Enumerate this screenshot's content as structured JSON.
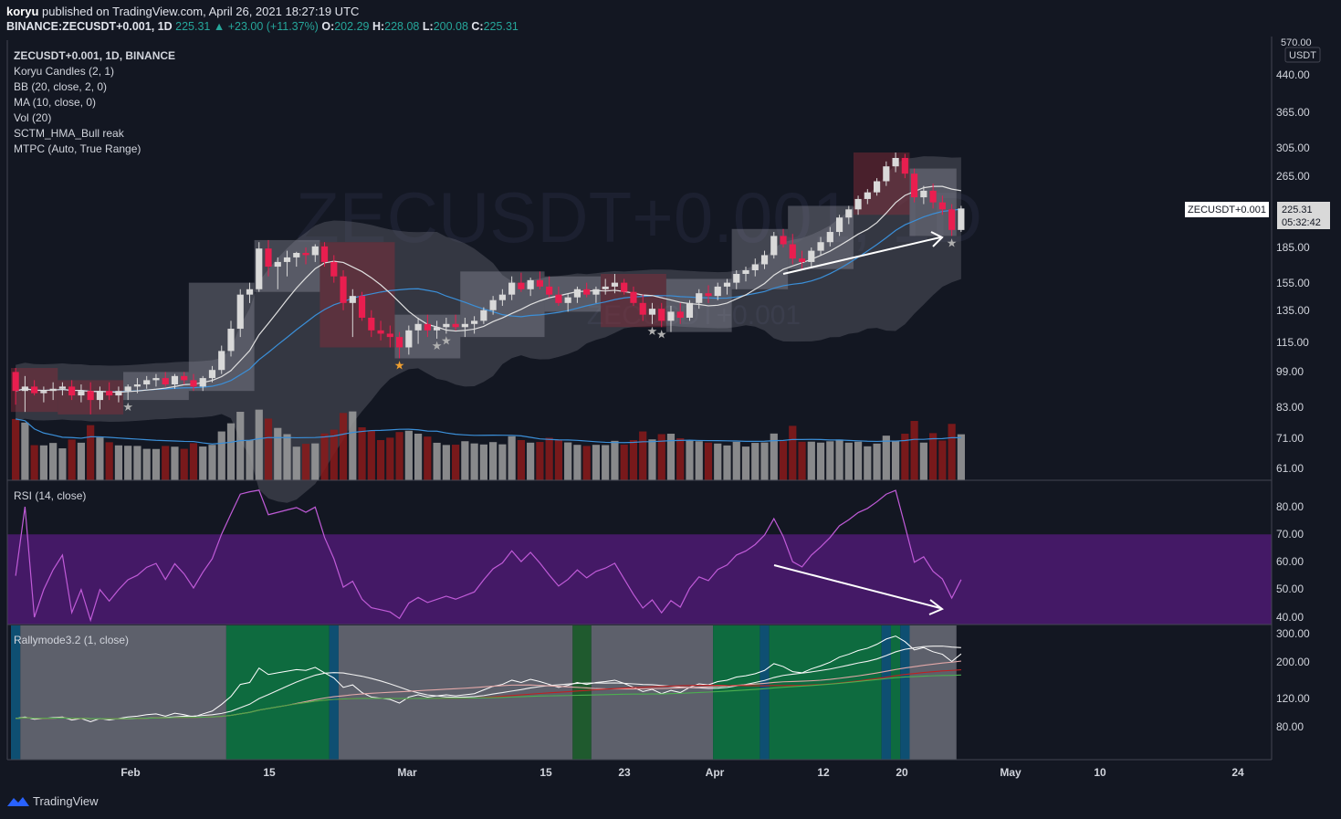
{
  "header": {
    "author": "koryu",
    "published_text": "published on TradingView.com, April 26, 2021 18:27:19 UTC",
    "symbol_line": "BINANCE:ZECUSDT+0.001, 1D",
    "last": "225.31",
    "change": "+23.00 (+11.37%)",
    "open_label": "O:",
    "open": "202.29",
    "high_label": "H:",
    "high": "228.08",
    "low_label": "L:",
    "low": "200.08",
    "close_label": "C:",
    "close": "225.31"
  },
  "legend": {
    "title": "ZECUSDT+0.001, 1D, BINANCE",
    "items": [
      "Koryu Candles (2, 1)",
      "BB (20, close, 2, 0)",
      "MA (10, close, 0)",
      "Vol (20)",
      "SCTM_HMA_Bull reak",
      "MTPC (Auto, True Range)"
    ],
    "rsi": "RSI (14, close)",
    "rally": "Rallymode3.2 (1, close)"
  },
  "watermark": "ZECUSDT+0.001, 1D",
  "watermark2": "ZECUSDT+0.001",
  "price_axis": {
    "unit": "USDT",
    "top_label": "570.00",
    "labels": [
      "440.00",
      "365.00",
      "305.00",
      "265.00",
      "225.31",
      "185.00",
      "155.00",
      "135.00",
      "115.00",
      "99.00",
      "83.00",
      "71.00",
      "61.00"
    ],
    "last_tag_symbol": "ZECUSDT+0.001",
    "last_tag_price": "225.31",
    "countdown": "05:32:42"
  },
  "rsi_axis": {
    "labels": [
      "80.00",
      "70.00",
      "60.00",
      "50.00",
      "40.00"
    ]
  },
  "rally_axis": {
    "labels": [
      "300.00",
      "200.00",
      "120.00",
      "80.00"
    ]
  },
  "time_axis": {
    "labels": [
      "Feb",
      "15",
      "Mar",
      "15",
      "23",
      "Apr",
      "12",
      "20",
      "May",
      "10",
      "24"
    ]
  },
  "footer": {
    "brand": "TradingView"
  },
  "colors": {
    "bg": "#131722",
    "up": "#d9d9d9",
    "down": "#e91e4f",
    "bb_fill": "#5d606b",
    "ma": "#e0e0e0",
    "ma_long": "#3b8fd8",
    "vol_up": "#9e9e9e",
    "vol_down": "#8b1a1a",
    "rsi_band": "#4a1a6e",
    "rsi_line": "#c05bd8",
    "rally_gray": "#5d606b",
    "rally_green": "#0e6b3f",
    "rally_blue": "#0e4f72",
    "arrow": "#ffffff"
  },
  "chart_data": {
    "type": "candlestick",
    "title": "ZECUSDT+0.001, 1D, BINANCE",
    "x_start": "2021-01-19",
    "x_end": "2021-04-26",
    "ohlc": [
      [
        99,
        101,
        84,
        90
      ],
      [
        90,
        97,
        81,
        92
      ],
      [
        92,
        95,
        88,
        89
      ],
      [
        89,
        92,
        85,
        90
      ],
      [
        90,
        94,
        86,
        91
      ],
      [
        91,
        94,
        88,
        92
      ],
      [
        92,
        95,
        86,
        88
      ],
      [
        88,
        93,
        85,
        90
      ],
      [
        90,
        94,
        80,
        86
      ],
      [
        86,
        92,
        82,
        90
      ],
      [
        90,
        94,
        86,
        88
      ],
      [
        88,
        92,
        85,
        90
      ],
      [
        90,
        93,
        86,
        92
      ],
      [
        92,
        96,
        89,
        93
      ],
      [
        93,
        97,
        91,
        95
      ],
      [
        95,
        98,
        92,
        96
      ],
      [
        96,
        99,
        92,
        93
      ],
      [
        93,
        98,
        91,
        97
      ],
      [
        97,
        99,
        93,
        95
      ],
      [
        95,
        98,
        90,
        92
      ],
      [
        92,
        97,
        90,
        96
      ],
      [
        96,
        102,
        94,
        100
      ],
      [
        100,
        113,
        98,
        110
      ],
      [
        110,
        128,
        107,
        123
      ],
      [
        123,
        150,
        118,
        146
      ],
      [
        146,
        155,
        140,
        150
      ],
      [
        150,
        190,
        148,
        184
      ],
      [
        184,
        192,
        160,
        168
      ],
      [
        168,
        176,
        150,
        172
      ],
      [
        172,
        182,
        160,
        176
      ],
      [
        176,
        181,
        168,
        180
      ],
      [
        180,
        185,
        170,
        178
      ],
      [
        178,
        188,
        172,
        186
      ],
      [
        186,
        190,
        168,
        172
      ],
      [
        172,
        178,
        155,
        160
      ],
      [
        160,
        165,
        135,
        140
      ],
      [
        140,
        150,
        118,
        145
      ],
      [
        145,
        148,
        128,
        130
      ],
      [
        130,
        135,
        118,
        122
      ],
      [
        122,
        128,
        116,
        120
      ],
      [
        120,
        125,
        112,
        118
      ],
      [
        118,
        121,
        106,
        112
      ],
      [
        112,
        125,
        108,
        122
      ],
      [
        122,
        130,
        114,
        126
      ],
      [
        126,
        132,
        118,
        122
      ],
      [
        122,
        128,
        117,
        124
      ],
      [
        124,
        130,
        120,
        126
      ],
      [
        126,
        132,
        122,
        124
      ],
      [
        124,
        130,
        118,
        126
      ],
      [
        126,
        131,
        120,
        128
      ],
      [
        128,
        137,
        126,
        135
      ],
      [
        135,
        145,
        132,
        142
      ],
      [
        142,
        150,
        138,
        146
      ],
      [
        146,
        160,
        142,
        155
      ],
      [
        155,
        163,
        148,
        150
      ],
      [
        150,
        159,
        145,
        157
      ],
      [
        157,
        164,
        150,
        152
      ],
      [
        152,
        160,
        144,
        146
      ],
      [
        146,
        152,
        138,
        140
      ],
      [
        140,
        147,
        134,
        144
      ],
      [
        144,
        152,
        140,
        150
      ],
      [
        150,
        155,
        144,
        146
      ],
      [
        146,
        152,
        140,
        150
      ],
      [
        150,
        158,
        146,
        152
      ],
      [
        152,
        162,
        147,
        155
      ],
      [
        155,
        158,
        146,
        148
      ],
      [
        148,
        152,
        138,
        140
      ],
      [
        140,
        146,
        128,
        132
      ],
      [
        132,
        140,
        126,
        136
      ],
      [
        136,
        140,
        124,
        128
      ],
      [
        128,
        138,
        121,
        134
      ],
      [
        134,
        140,
        126,
        130
      ],
      [
        130,
        142,
        128,
        140
      ],
      [
        140,
        150,
        136,
        147
      ],
      [
        147,
        153,
        140,
        145
      ],
      [
        145,
        155,
        142,
        152
      ],
      [
        152,
        158,
        146,
        155
      ],
      [
        155,
        165,
        150,
        162
      ],
      [
        162,
        168,
        156,
        165
      ],
      [
        165,
        175,
        160,
        170
      ],
      [
        170,
        182,
        166,
        178
      ],
      [
        178,
        200,
        175,
        196
      ],
      [
        196,
        203,
        185,
        188
      ],
      [
        188,
        198,
        170,
        175
      ],
      [
        175,
        182,
        166,
        172
      ],
      [
        172,
        185,
        168,
        182
      ],
      [
        182,
        195,
        178,
        190
      ],
      [
        190,
        205,
        186,
        200
      ],
      [
        200,
        218,
        196,
        215
      ],
      [
        215,
        228,
        208,
        224
      ],
      [
        224,
        240,
        218,
        236
      ],
      [
        236,
        248,
        230,
        244
      ],
      [
        244,
        262,
        240,
        258
      ],
      [
        258,
        285,
        252,
        278
      ],
      [
        278,
        298,
        270,
        290
      ],
      [
        290,
        296,
        262,
        268
      ],
      [
        268,
        275,
        232,
        238
      ],
      [
        238,
        252,
        230,
        246
      ],
      [
        246,
        255,
        225,
        232
      ],
      [
        232,
        240,
        218,
        224
      ],
      [
        224,
        230,
        196,
        202
      ],
      [
        202,
        228,
        200,
        225
      ]
    ],
    "rsi_range": [
      40,
      80
    ],
    "rsi_band": [
      40,
      70
    ]
  }
}
